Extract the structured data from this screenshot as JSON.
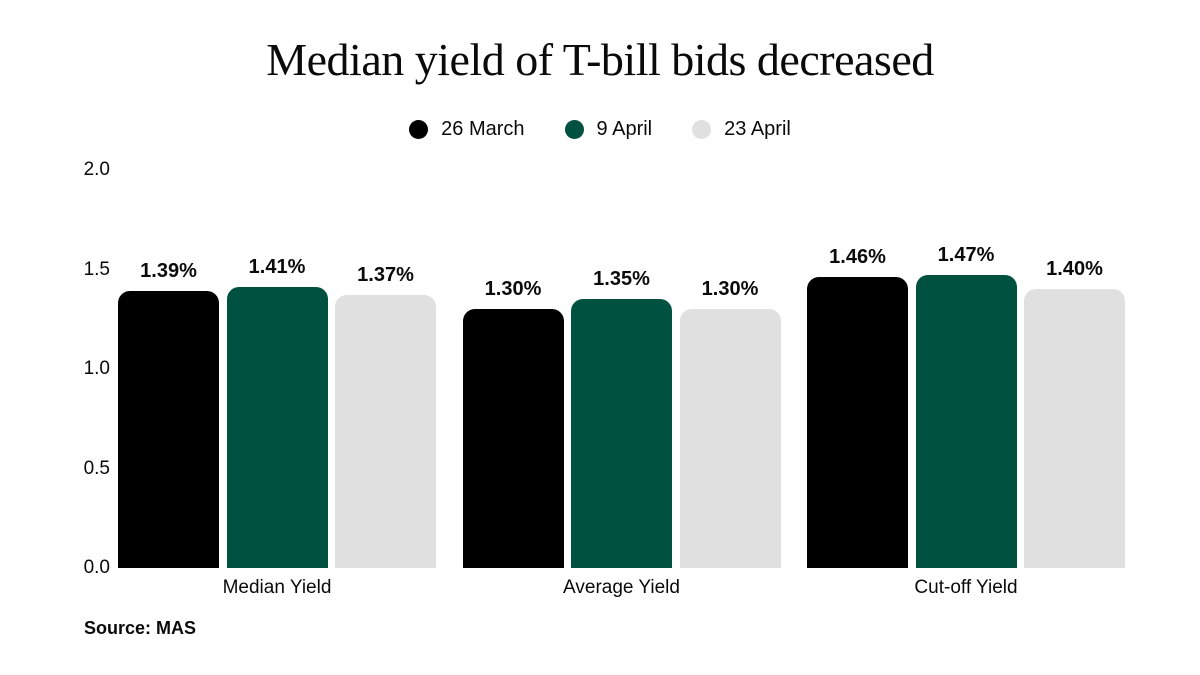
{
  "title": "Median yield of T-bill bids decreased",
  "source": "Source: MAS",
  "colors": {
    "background": "#ffffff",
    "text": "#0a0a0a",
    "series_black": "#000000",
    "series_green": "#00513f",
    "series_gray": "#e0e0e0"
  },
  "legend": [
    {
      "label": "26 March",
      "color": "#000000"
    },
    {
      "label": "9 April",
      "color": "#00513f"
    },
    {
      "label": "23 April",
      "color": "#e0e0e0"
    }
  ],
  "chart_data": {
    "type": "bar",
    "title": "Median yield of T-bill bids decreased",
    "categories": [
      "Median Yield",
      "Average Yield",
      "Cut-off Yield"
    ],
    "series": [
      {
        "name": "26 March",
        "color": "#000000",
        "values": [
          1.39,
          1.3,
          1.46
        ],
        "labels": [
          "1.39%",
          "1.30%",
          "1.46%"
        ]
      },
      {
        "name": "9 April",
        "color": "#00513f",
        "values": [
          1.41,
          1.35,
          1.47
        ],
        "labels": [
          "1.41%",
          "1.35%",
          "1.47%"
        ]
      },
      {
        "name": "23 April",
        "color": "#e0e0e0",
        "values": [
          1.37,
          1.3,
          1.4
        ],
        "labels": [
          "1.37%",
          "1.30%",
          "1.40%"
        ]
      }
    ],
    "xlabel": "",
    "ylabel": "",
    "ylim": [
      0,
      2.0
    ],
    "yticks": [
      "0.0",
      "0.5",
      "1.0",
      "1.5",
      "2.0"
    ],
    "ytick_values": [
      0,
      0.5,
      1.0,
      1.5,
      2.0
    ],
    "grid": false,
    "legend_position": "top",
    "value_labels_shown": true
  }
}
